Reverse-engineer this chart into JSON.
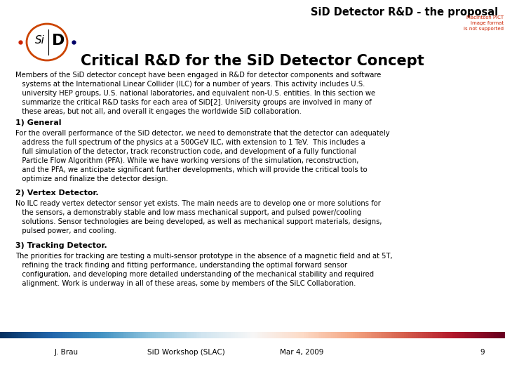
{
  "title_header": "SiD Detector R&D - the proposal",
  "pict_note": "Macintosh PICT\nimage format\nis not supported",
  "slide_title": "Critical R&D for the SiD Detector Concept",
  "section1_title": "1) General",
  "section1_body": "For the overall performance of the SiD detector, we need to demonstrate that the detector can adequately\n     address the full spectrum of the physics at a 500GeV ILC, with extension to 1 TeV.  This includes a\n     full simulation of the detector, track reconstruction code, and development of a fully functional\n     Particle Flow Algorithm (PFA). While we have working versions of the simulation, reconstruction,\n     and the PFA, we anticipate significant further developments, which will provide the critical tools to\n     optimize and finalize the detector design.",
  "section2_title": "2) Vertex Detector.",
  "section2_body": "No ILC ready vertex detector sensor yet exists. The main needs are to develop one or more solutions for\n     the sensors, a demonstrably stable and low mass mechanical support, and pulsed power/cooling\n     solutions. Sensor technologies are being developed, as well as mechanical support materials, designs,\n     pulsed power, and cooling.",
  "section3_title": "3) Tracking Detector.",
  "section3_body": "The priorities for tracking are testing a multi-sensor prototype in the absence of a magnetic field and at 5T,\n     refining the track finding and fitting performance, understanding the optimal forward sensor\n     configuration, and developing more detailed understanding of the mechanical stability and required\n     alignment. Work is underway in all of these areas, some by members of the SiLC Collaboration.",
  "footer_left": "J. Brau",
  "footer_center": "SiD Workshop (SLAC)",
  "footer_date": "Mar 4, 2009",
  "footer_page": "9",
  "bg_color": "#ffffff",
  "pict_color": "#cc2200",
  "logo_circle_color": "#cc4400",
  "dot_left_color": "#cc2200",
  "dot_right_color": "#000066"
}
